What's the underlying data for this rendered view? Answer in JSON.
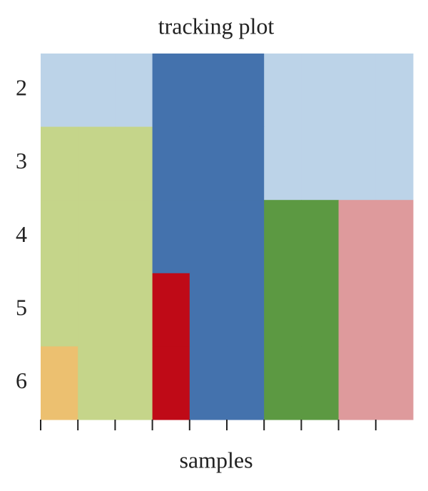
{
  "chart_data": {
    "type": "tracking",
    "title": "tracking plot",
    "x_label": "samples",
    "rows": [
      2,
      3,
      4,
      5,
      6
    ],
    "categories": [
      null,
      null,
      null,
      null,
      null,
      null,
      null,
      null,
      null,
      null
    ],
    "cells": [
      [
        "#bcd3e8",
        "#bcd3e8",
        "#bcd3e8",
        "#4472ad",
        "#4472ad",
        "#4472ad",
        "#bcd3e8",
        "#bcd3e8",
        "#bcd3e8",
        "#bcd3e8"
      ],
      [
        "#c5d58a",
        "#c5d58a",
        "#c5d58a",
        "#4472ad",
        "#4472ad",
        "#4472ad",
        "#bcd3e8",
        "#bcd3e8",
        "#bcd3e8",
        "#bcd3e8"
      ],
      [
        "#c5d58a",
        "#c5d58a",
        "#c5d58a",
        "#4472ad",
        "#4472ad",
        "#4472ad",
        "#5c9942",
        "#5c9942",
        "#de9a9c",
        "#de9a9c"
      ],
      [
        "#c5d58a",
        "#c5d58a",
        "#c5d58a",
        "#bf0a17",
        "#4472ad",
        "#4472ad",
        "#5c9942",
        "#5c9942",
        "#de9a9c",
        "#de9a9c"
      ],
      [
        "#ecc070",
        "#c5d58a",
        "#c5d58a",
        "#bf0a17",
        "#4472ad",
        "#4472ad",
        "#5c9942",
        "#5c9942",
        "#de9a9c",
        "#de9a9c"
      ]
    ]
  }
}
